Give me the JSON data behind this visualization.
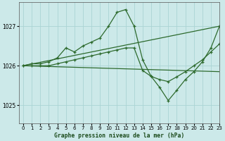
{
  "title": "Graphe pression niveau de la mer (hPa)",
  "bg_color": "#cce9e9",
  "grid_color": "#aad4d4",
  "line_color": "#2d6a2d",
  "xlim": [
    -0.5,
    23
  ],
  "ylim": [
    1024.55,
    1027.6
  ],
  "yticks": [
    1025,
    1026,
    1027
  ],
  "xticks": [
    0,
    1,
    2,
    3,
    4,
    5,
    6,
    7,
    8,
    9,
    10,
    11,
    12,
    13,
    14,
    15,
    16,
    17,
    18,
    19,
    20,
    21,
    22,
    23
  ],
  "series": [
    {
      "x": [
        0,
        23
      ],
      "y": [
        1026.0,
        1027.0
      ],
      "marker": false,
      "lw": 0.9
    },
    {
      "x": [
        0,
        23
      ],
      "y": [
        1026.0,
        1025.85
      ],
      "marker": false,
      "lw": 0.9
    },
    {
      "x": [
        0,
        1,
        2,
        3,
        4,
        5,
        6,
        7,
        8,
        9,
        10,
        11,
        12,
        13,
        14,
        15,
        16,
        17,
        18,
        19,
        20,
        21,
        22,
        23
      ],
      "y": [
        1026.0,
        1026.0,
        1026.0,
        1026.0,
        1026.05,
        1026.1,
        1026.15,
        1026.2,
        1026.25,
        1026.3,
        1026.35,
        1026.4,
        1026.45,
        1026.45,
        1025.88,
        1025.73,
        1025.65,
        1025.6,
        1025.72,
        1025.85,
        1026.0,
        1026.15,
        1026.35,
        1026.55
      ],
      "marker": true,
      "lw": 0.9
    },
    {
      "x": [
        0,
        1,
        2,
        3,
        4,
        5,
        6,
        7,
        8,
        9,
        10,
        11,
        12,
        13,
        14,
        15,
        16,
        17,
        18,
        19,
        20,
        21,
        22,
        23
      ],
      "y": [
        1026.0,
        1026.05,
        1026.05,
        1026.1,
        1026.2,
        1026.45,
        1026.35,
        1026.5,
        1026.6,
        1026.7,
        1027.0,
        1027.35,
        1027.42,
        1027.0,
        1026.15,
        1025.73,
        1025.45,
        1025.12,
        1025.38,
        1025.65,
        1025.85,
        1026.1,
        1026.45,
        1027.0
      ],
      "marker": true,
      "lw": 0.9
    }
  ]
}
